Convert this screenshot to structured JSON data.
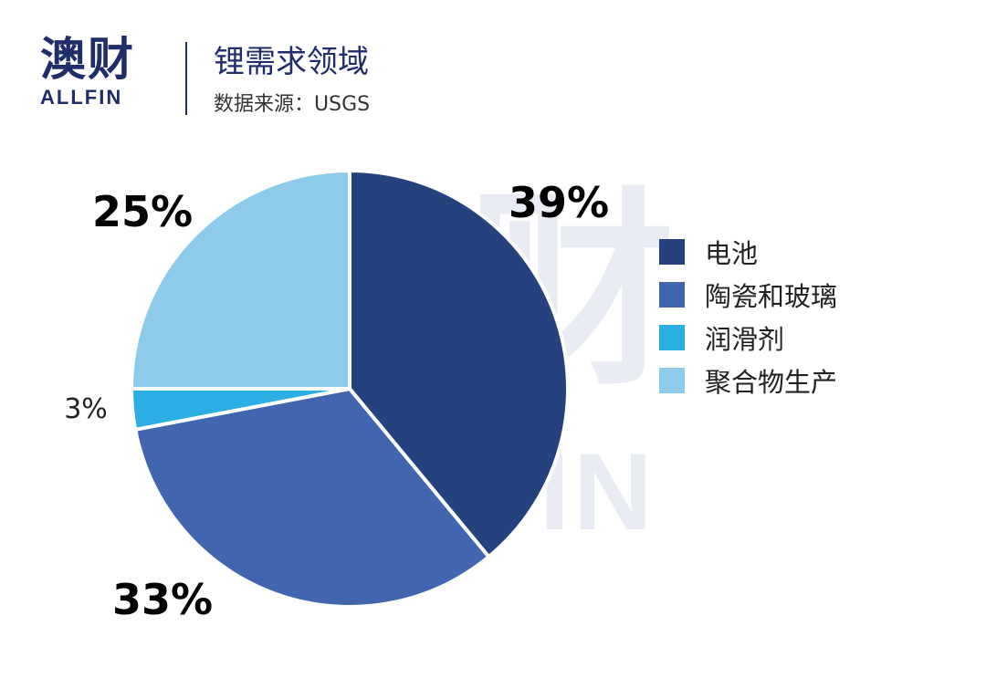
{
  "header": {
    "logo_cn": "澳财",
    "logo_en": "ALLFIN",
    "title": "锂需求领域",
    "subtitle": "数据来源：USGS"
  },
  "watermark": {
    "cn": "澳财",
    "en": "ALLFIN"
  },
  "chart_data": {
    "type": "pie",
    "categories": [
      "电池",
      "陶瓷和玻璃",
      "润滑剂",
      "聚合物生产"
    ],
    "values": [
      39,
      33,
      3,
      25
    ],
    "labels": [
      "39%",
      "33%",
      "3%",
      "25%"
    ],
    "colors": [
      "#25427e",
      "#4265b0",
      "#2aaee4",
      "#8ccbea"
    ],
    "legend_position": "right"
  }
}
